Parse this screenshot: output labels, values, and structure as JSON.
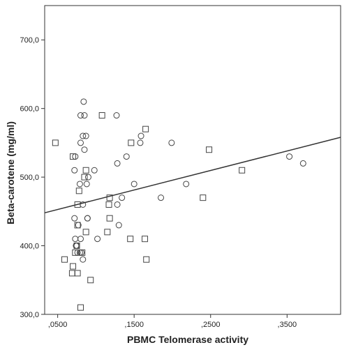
{
  "chart_data": {
    "type": "scatter",
    "xlabel": "PBMC Telomerase activity",
    "ylabel": "Beta-carotene (mg/ml)",
    "xlim": [
      0.033,
      0.42
    ],
    "ylim": [
      300,
      750
    ],
    "x_ticks": [
      0.05,
      0.15,
      0.25,
      0.35
    ],
    "x_tick_labels": [
      ",0500",
      ",1500",
      ",2500",
      ",3500"
    ],
    "y_ticks": [
      300,
      400,
      500,
      600,
      700
    ],
    "y_tick_labels": [
      "300,0",
      "400,0",
      "500,0",
      "600,0",
      "700,0"
    ],
    "grid": false,
    "fit_line": {
      "x": [
        0.033,
        0.42
      ],
      "y": [
        448,
        558
      ]
    },
    "colors": {
      "marker_stroke": "#444444",
      "line": "#333333",
      "frame": "#333333"
    },
    "series": [
      {
        "marker": "circle",
        "points": [
          [
            0.084,
            610
          ],
          [
            0.08,
            590
          ],
          [
            0.085,
            590
          ],
          [
            0.127,
            590
          ],
          [
            0.083,
            560
          ],
          [
            0.087,
            560
          ],
          [
            0.159,
            560
          ],
          [
            0.08,
            550
          ],
          [
            0.158,
            550
          ],
          [
            0.199,
            550
          ],
          [
            0.085,
            540
          ],
          [
            0.073,
            530
          ],
          [
            0.14,
            530
          ],
          [
            0.353,
            530
          ],
          [
            0.128,
            520
          ],
          [
            0.371,
            520
          ],
          [
            0.072,
            510
          ],
          [
            0.098,
            510
          ],
          [
            0.09,
            500
          ],
          [
            0.079,
            490
          ],
          [
            0.088,
            490
          ],
          [
            0.15,
            490
          ],
          [
            0.218,
            490
          ],
          [
            0.134,
            470
          ],
          [
            0.185,
            470
          ],
          [
            0.083,
            460
          ],
          [
            0.128,
            460
          ],
          [
            0.089,
            440
          ],
          [
            0.072,
            440
          ],
          [
            0.089,
            440
          ],
          [
            0.077,
            430
          ],
          [
            0.13,
            430
          ],
          [
            0.073,
            410
          ],
          [
            0.08,
            410
          ],
          [
            0.102,
            410
          ],
          [
            0.074,
            400
          ],
          [
            0.075,
            400
          ],
          [
            0.076,
            390
          ],
          [
            0.079,
            390
          ],
          [
            0.081,
            390
          ],
          [
            0.083,
            380
          ]
        ]
      },
      {
        "marker": "square",
        "points": [
          [
            0.108,
            590
          ],
          [
            0.165,
            570
          ],
          [
            0.047,
            550
          ],
          [
            0.146,
            550
          ],
          [
            0.248,
            540
          ],
          [
            0.07,
            530
          ],
          [
            0.087,
            510
          ],
          [
            0.291,
            510
          ],
          [
            0.085,
            500
          ],
          [
            0.078,
            480
          ],
          [
            0.118,
            470
          ],
          [
            0.24,
            470
          ],
          [
            0.076,
            460
          ],
          [
            0.117,
            460
          ],
          [
            0.118,
            440
          ],
          [
            0.076,
            430
          ],
          [
            0.087,
            420
          ],
          [
            0.115,
            420
          ],
          [
            0.145,
            410
          ],
          [
            0.164,
            410
          ],
          [
            0.075,
            400
          ],
          [
            0.073,
            390
          ],
          [
            0.082,
            390
          ],
          [
            0.059,
            380
          ],
          [
            0.166,
            380
          ],
          [
            0.07,
            370
          ],
          [
            0.069,
            360
          ],
          [
            0.076,
            360
          ],
          [
            0.093,
            350
          ],
          [
            0.08,
            310
          ]
        ]
      }
    ]
  }
}
